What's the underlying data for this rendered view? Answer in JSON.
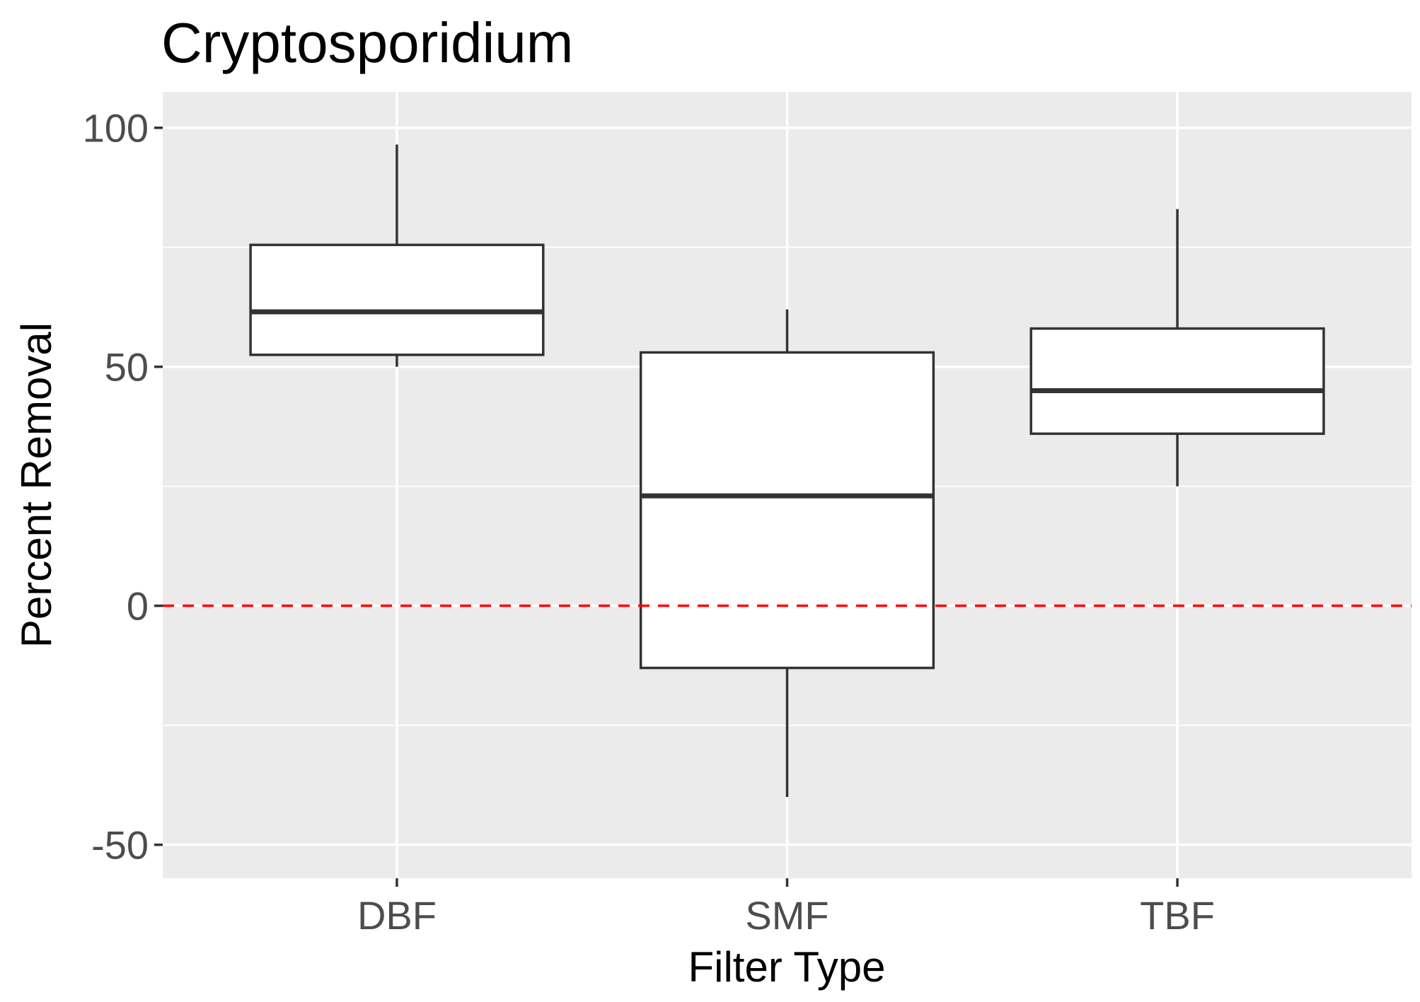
{
  "chart_data": {
    "type": "box",
    "title": "Cryptosporidium",
    "xlabel": "Filter Type",
    "ylabel": "Percent Removal",
    "ylim": [
      -57,
      107.5
    ],
    "yticks": [
      -50,
      0,
      50,
      100
    ],
    "ytick_labels": [
      "-50",
      "0",
      "50",
      "100"
    ],
    "grid": true,
    "categories": [
      "DBF",
      "SMF",
      "TBF"
    ],
    "boxes": [
      {
        "category": "DBF",
        "whisker_low": 50,
        "q1": 52.5,
        "median": 61.5,
        "q3": 75.5,
        "whisker_high": 96.5
      },
      {
        "category": "SMF",
        "whisker_low": -40,
        "q1": -13,
        "median": 23,
        "q3": 53,
        "whisker_high": 62
      },
      {
        "category": "TBF",
        "whisker_low": 25,
        "q1": 36,
        "median": 45,
        "q3": 58,
        "whisker_high": 83
      }
    ],
    "reference_line": {
      "y": 0,
      "color": "#ff0000",
      "style": "dashed"
    },
    "colors": {
      "panel": "#ebebeb",
      "grid": "#ffffff",
      "box_fill": "#ffffff",
      "box_line": "#333333"
    }
  }
}
